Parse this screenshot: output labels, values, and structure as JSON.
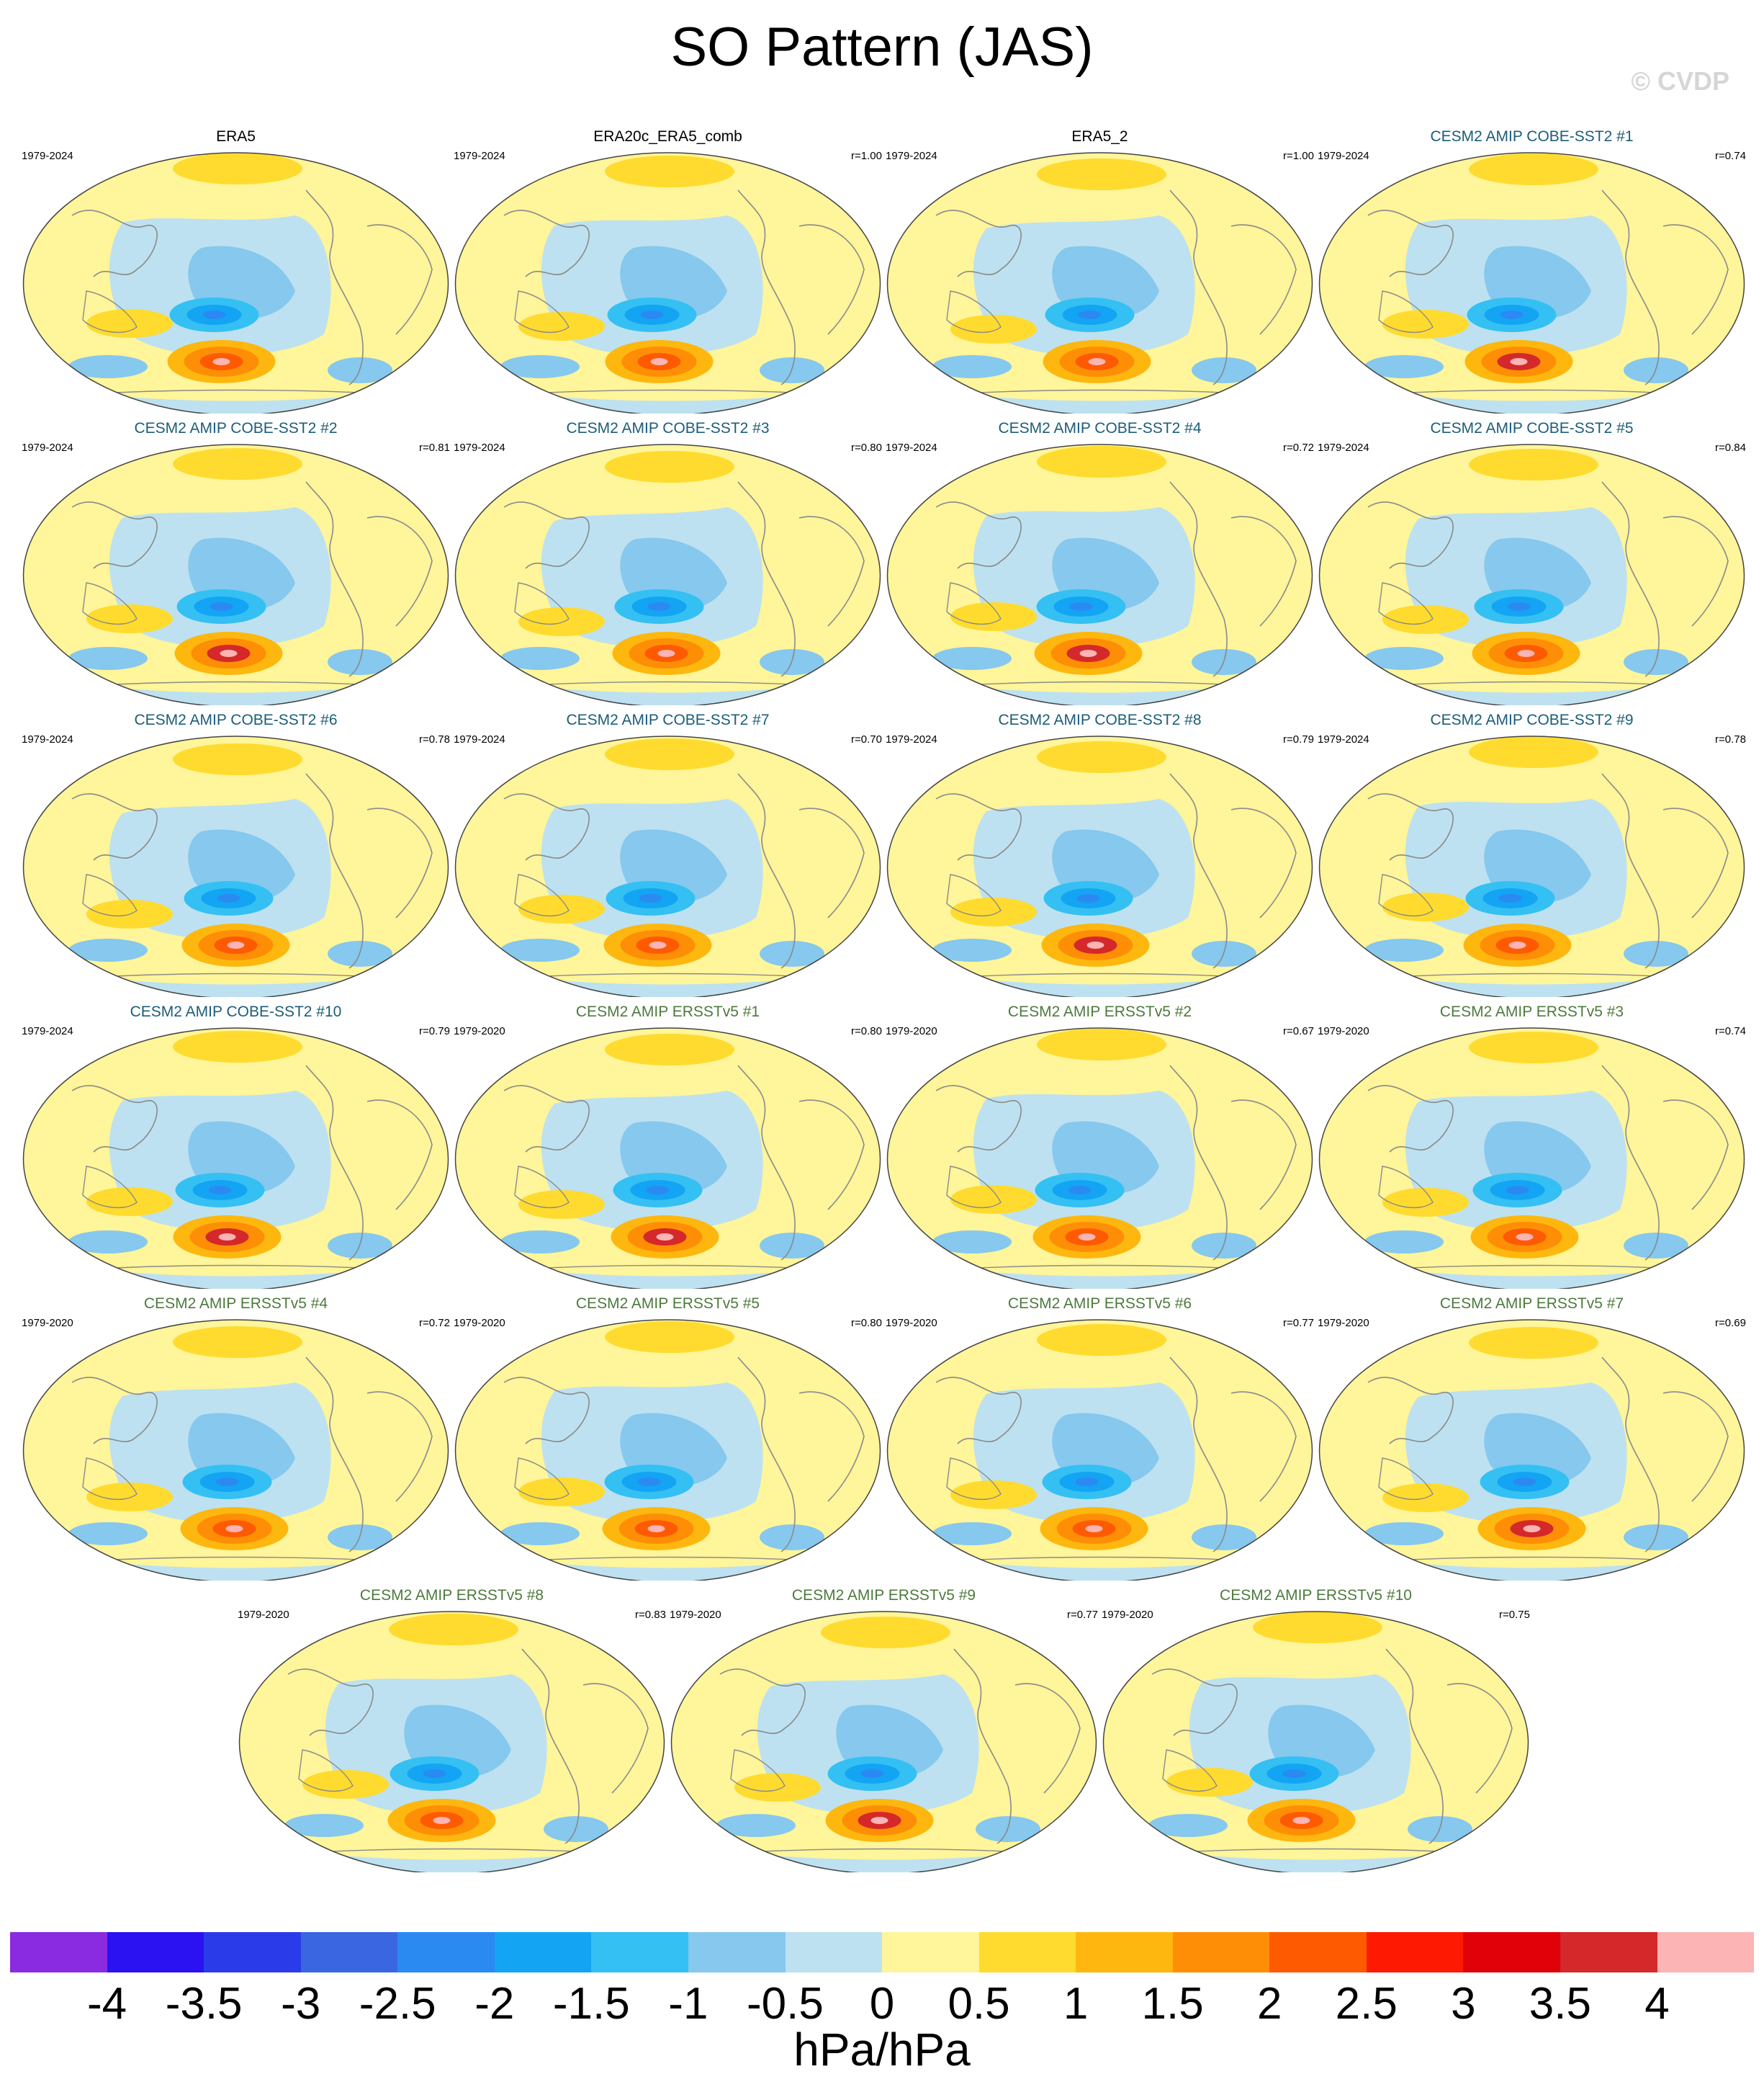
{
  "title": "SO Pattern (JAS)",
  "watermark": "© CVDP",
  "panels": [
    {
      "title": "ERA5",
      "kind": "obs",
      "period": "1979-2024",
      "r": ""
    },
    {
      "title": "ERA20c_ERA5_comb",
      "kind": "obs",
      "period": "1979-2024",
      "r": "r=1.00"
    },
    {
      "title": "ERA5_2",
      "kind": "obs",
      "period": "1979-2024",
      "r": "r=1.00"
    },
    {
      "title": "CESM2 AMIP COBE-SST2 #1",
      "kind": "cobe",
      "period": "1979-2024",
      "r": "r=0.74"
    },
    {
      "title": "CESM2 AMIP COBE-SST2 #2",
      "kind": "cobe",
      "period": "1979-2024",
      "r": "r=0.81"
    },
    {
      "title": "CESM2 AMIP COBE-SST2 #3",
      "kind": "cobe",
      "period": "1979-2024",
      "r": "r=0.80"
    },
    {
      "title": "CESM2 AMIP COBE-SST2 #4",
      "kind": "cobe",
      "period": "1979-2024",
      "r": "r=0.72"
    },
    {
      "title": "CESM2 AMIP COBE-SST2 #5",
      "kind": "cobe",
      "period": "1979-2024",
      "r": "r=0.84"
    },
    {
      "title": "CESM2 AMIP COBE-SST2 #6",
      "kind": "cobe",
      "period": "1979-2024",
      "r": "r=0.78"
    },
    {
      "title": "CESM2 AMIP COBE-SST2 #7",
      "kind": "cobe",
      "period": "1979-2024",
      "r": "r=0.70"
    },
    {
      "title": "CESM2 AMIP COBE-SST2 #8",
      "kind": "cobe",
      "period": "1979-2024",
      "r": "r=0.79"
    },
    {
      "title": "CESM2 AMIP COBE-SST2 #9",
      "kind": "cobe",
      "period": "1979-2024",
      "r": "r=0.78"
    },
    {
      "title": "CESM2 AMIP COBE-SST2 #10",
      "kind": "cobe",
      "period": "1979-2024",
      "r": "r=0.79"
    },
    {
      "title": "CESM2 AMIP ERSSTv5 #1",
      "kind": "ersst",
      "period": "1979-2020",
      "r": "r=0.80"
    },
    {
      "title": "CESM2 AMIP ERSSTv5 #2",
      "kind": "ersst",
      "period": "1979-2020",
      "r": "r=0.67"
    },
    {
      "title": "CESM2 AMIP ERSSTv5 #3",
      "kind": "ersst",
      "period": "1979-2020",
      "r": "r=0.74"
    },
    {
      "title": "CESM2 AMIP ERSSTv5 #4",
      "kind": "ersst",
      "period": "1979-2020",
      "r": "r=0.72"
    },
    {
      "title": "CESM2 AMIP ERSSTv5 #5",
      "kind": "ersst",
      "period": "1979-2020",
      "r": "r=0.80"
    },
    {
      "title": "CESM2 AMIP ERSSTv5 #6",
      "kind": "ersst",
      "period": "1979-2020",
      "r": "r=0.77"
    },
    {
      "title": "CESM2 AMIP ERSSTv5 #7",
      "kind": "ersst",
      "period": "1979-2020",
      "r": "r=0.69"
    },
    {
      "title": "CESM2 AMIP ERSSTv5 #8",
      "kind": "ersst",
      "period": "1979-2020",
      "r": "r=0.83"
    },
    {
      "title": "CESM2 AMIP ERSSTv5 #9",
      "kind": "ersst",
      "period": "1979-2020",
      "r": "r=0.77"
    },
    {
      "title": "CESM2 AMIP ERSSTv5 #10",
      "kind": "ersst",
      "period": "1979-2020",
      "r": "r=0.75"
    }
  ],
  "colorbar": {
    "colors": [
      "#8a2be2",
      "#2a12f2",
      "#2a3cea",
      "#3a66e2",
      "#2a8af2",
      "#14a4f4",
      "#34c0f2",
      "#86c8ee",
      "#bde1f0",
      "#fff59a",
      "#fedb2e",
      "#feb70e",
      "#fe8e06",
      "#fe5a02",
      "#fe1a02",
      "#e00208",
      "#d4282a",
      "#fcb4b4"
    ],
    "ticks": [
      "-4",
      "-3.5",
      "-3",
      "-2.5",
      "-2",
      "-1.5",
      "-1",
      "-0.5",
      "0",
      "0.5",
      "1",
      "1.5",
      "2",
      "2.5",
      "3",
      "3.5",
      "4"
    ],
    "units": "hPa/hPa"
  },
  "title_colors": {
    "obs": "#000000",
    "cobe": "#1b5d78",
    "ersst": "#4d7a3c"
  }
}
